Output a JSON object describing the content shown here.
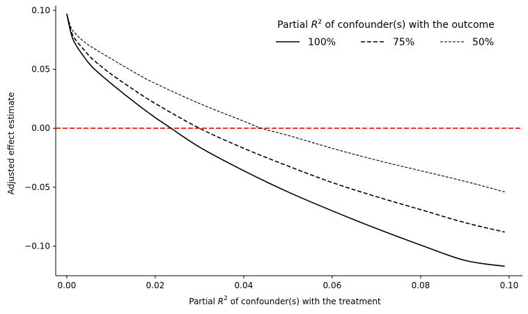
{
  "chart_data": {
    "type": "line",
    "xlabel": {
      "prefix": "Partial ",
      "var": "R",
      "sup": "2",
      "suffix": " of confounder(s) with the treatment"
    },
    "ylabel": "Adjusted effect estimate",
    "xlim": [
      -0.0025,
      0.103
    ],
    "ylim": [
      -0.125,
      0.104
    ],
    "xticks": [
      0.0,
      0.02,
      0.04,
      0.06,
      0.08,
      0.1
    ],
    "xtick_labels": [
      "0.00",
      "0.02",
      "0.04",
      "0.06",
      "0.08",
      "0.10"
    ],
    "yticks": [
      -0.1,
      -0.05,
      0.0,
      0.05,
      0.1
    ],
    "ytick_labels": [
      "−0.10",
      "−0.05",
      "0.00",
      "0.05",
      "0.10"
    ],
    "reference_line": {
      "y": 0.0,
      "color": "#ff0000",
      "style": "dashed"
    },
    "legend": {
      "title": {
        "prefix": "Partial ",
        "var": "R",
        "sup": "2",
        "suffix": " of confounder(s) with the outcome"
      },
      "placement": "top-right",
      "frame": false
    },
    "series": [
      {
        "name": "100%",
        "style": "solid",
        "color": "#000000",
        "x": [
          0.0,
          0.001,
          0.002,
          0.004,
          0.006,
          0.01,
          0.015,
          0.02,
          0.022,
          0.03,
          0.04,
          0.05,
          0.06,
          0.07,
          0.08,
          0.09,
          0.099
        ],
        "y": [
          0.097,
          0.08,
          0.071,
          0.06,
          0.051,
          0.038,
          0.023,
          0.009,
          0.004,
          -0.016,
          -0.036,
          -0.054,
          -0.07,
          -0.085,
          -0.099,
          -0.112,
          -0.117
        ]
      },
      {
        "name": "75%",
        "style": "dashed",
        "color": "#000000",
        "x": [
          0.0,
          0.001,
          0.002,
          0.004,
          0.006,
          0.01,
          0.015,
          0.02,
          0.03,
          0.04,
          0.05,
          0.06,
          0.07,
          0.08,
          0.09,
          0.099
        ],
        "y": [
          0.097,
          0.082,
          0.075,
          0.066,
          0.058,
          0.046,
          0.033,
          0.021,
          0.0,
          -0.017,
          -0.032,
          -0.046,
          -0.058,
          -0.069,
          -0.08,
          -0.088
        ]
      },
      {
        "name": "50%",
        "style": "dashed-thin",
        "color": "#000000",
        "x": [
          0.0,
          0.001,
          0.002,
          0.004,
          0.006,
          0.01,
          0.015,
          0.02,
          0.03,
          0.04,
          0.044,
          0.05,
          0.06,
          0.07,
          0.08,
          0.09,
          0.099
        ],
        "y": [
          0.097,
          0.085,
          0.08,
          0.073,
          0.068,
          0.059,
          0.048,
          0.038,
          0.021,
          0.006,
          0.0,
          -0.006,
          -0.017,
          -0.027,
          -0.036,
          -0.045,
          -0.054
        ]
      }
    ]
  }
}
